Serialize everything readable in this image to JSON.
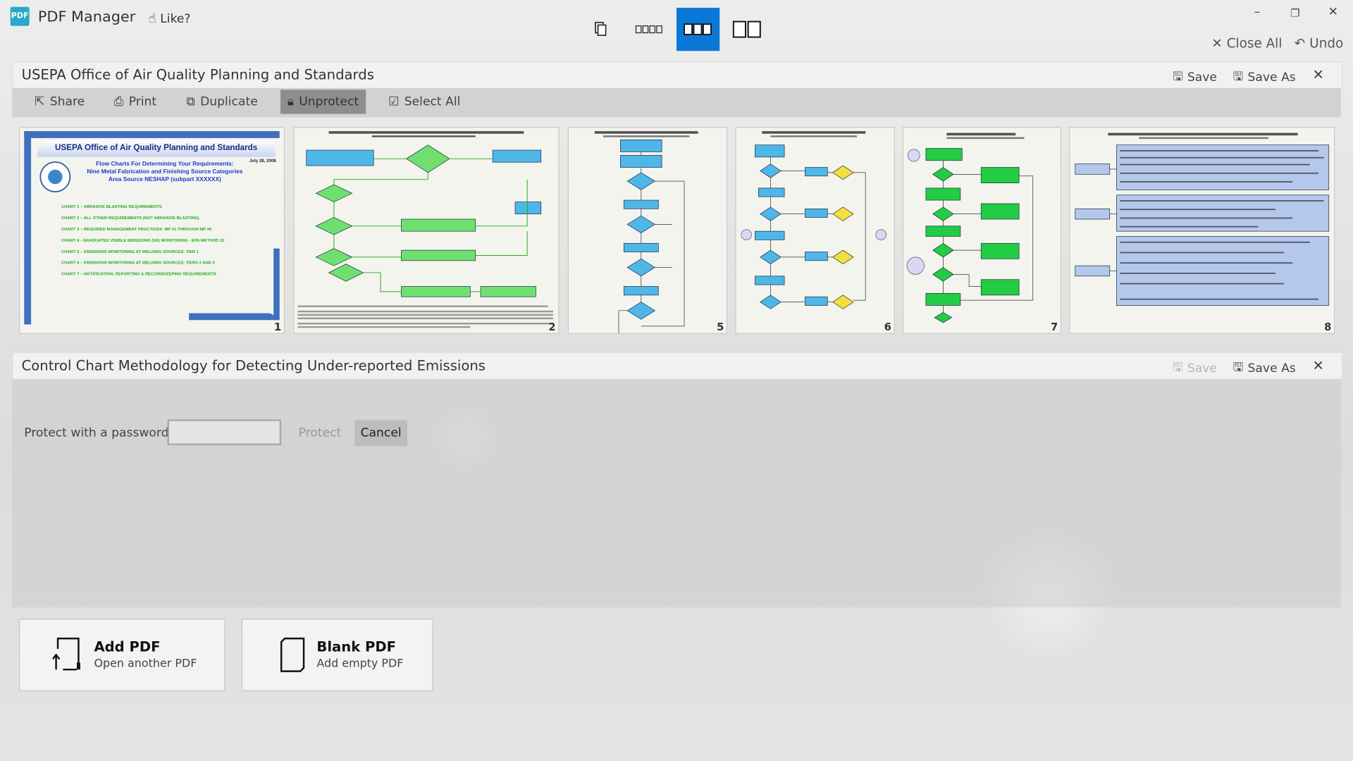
{
  "app": {
    "name": "PDF Manager",
    "like_label": "Like?",
    "logo_text": "PDF"
  },
  "view_modes": [
    {
      "name": "single-page",
      "active": false
    },
    {
      "name": "four-columns",
      "active": false
    },
    {
      "name": "three-columns",
      "active": true
    },
    {
      "name": "two-columns",
      "active": false
    }
  ],
  "window": {
    "close_all": "Close All",
    "undo": "Undo"
  },
  "documents": [
    {
      "title": "USEPA Office of Air Quality Planning and Standards",
      "save": "Save",
      "save_as": "Save As",
      "toolbar": {
        "share": "Share",
        "print": "Print",
        "duplicate": "Duplicate",
        "unprotect": "Unprotect",
        "select_all": "Select All"
      },
      "pages": [
        {
          "number": "1",
          "heading": "USEPA Office of Air Quality Planning and Standards",
          "date": "July 28, 2008",
          "subtitle": [
            "Flow Charts For Determining Your Requirements:",
            "Nine Metal Fabrication and Finishing Source Categories",
            "Area Source NESHAP (subpart XXXXXX)"
          ],
          "charts": [
            "CHART 1 – ABRASIVE BLASTING REQUIREMENTS",
            "CHART 2 – ALL OTHER REQUIREMENTS (NOT ABRASIVE BLASTING)",
            "CHART 3 – REQUIRED MANAGEMENT PRACTICES: MP #1 THROUGH MP #6",
            "CHART 4 - GRADUATED VISIBLE EMISSIONS (VE) MONITORING - EPA METHOD 22",
            "CHART 5 – EMISSIONS MONITORING AT WELDING SOURCES: TIER 1",
            "CHART 6 – EMISSIONS MONITORING AT WELDING SOURCES: TIERS 2 AND 3",
            "CHART 7 – NOTIFICATION, REPORTING & RECORDKEEPING REQUIREMENTS"
          ]
        },
        {
          "number": "2"
        },
        {
          "number": "5"
        },
        {
          "number": "6"
        },
        {
          "number": "7"
        },
        {
          "number": "8"
        }
      ]
    },
    {
      "title": "Control Chart Methodology for Detecting Under-reported Emissions",
      "save": "Save",
      "save_as": "Save As",
      "protect": {
        "label": "Protect with a password:",
        "value": "",
        "protect_button": "Protect",
        "cancel_button": "Cancel"
      }
    }
  ],
  "actions": {
    "add": {
      "title": "Add PDF",
      "subtitle": "Open another PDF"
    },
    "blank": {
      "title": "Blank PDF",
      "subtitle": "Add empty PDF"
    }
  },
  "colors": {
    "accent": "#0a78d7",
    "epa_blue": "#3f6fbf",
    "chart_green": "#22aa22"
  }
}
